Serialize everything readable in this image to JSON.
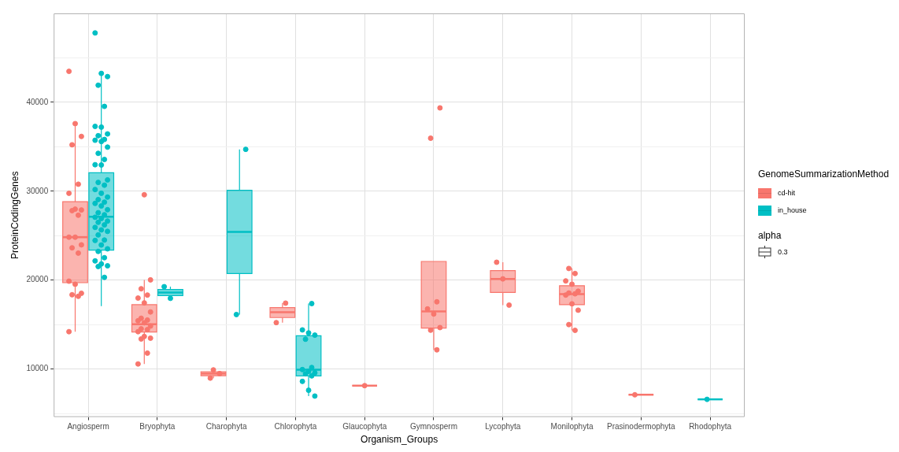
{
  "chart_data": {
    "type": "box",
    "xlabel": "Organism_Groups",
    "ylabel": "ProteinCodingGenes",
    "legend_title": "GenomeSummarizationMethod",
    "categories": [
      "Angiosperm",
      "Bryophyta",
      "Charophyta",
      "Chlorophyta",
      "Glaucophyta",
      "Gymnosperm",
      "Lycophyta",
      "Monilophyta",
      "Prasinodermophyta",
      "Rhodophyta"
    ],
    "ylim": [
      4600,
      50000
    ],
    "yticks": [
      {
        "value": 5000,
        "label": null
      },
      10000,
      {
        "value": 15000,
        "label": null
      },
      20000,
      {
        "value": 25000,
        "label": null
      },
      30000,
      {
        "value": 35000,
        "label": null
      },
      40000,
      {
        "value": 45000,
        "label": null
      }
    ],
    "grid": true,
    "legend": "right",
    "annotations": [
      "alpha",
      "0.3"
    ],
    "series": [
      {
        "name": "cd-hit",
        "color": "#f8766d",
        "boxes": [
          {
            "low": 14200,
            "q1": 19710,
            "median": 24830,
            "q3": 28830,
            "high": 37600
          },
          {
            "low": 10570,
            "q1": 14170,
            "median": 15030,
            "q3": 17240,
            "high": 20030
          },
          {
            "low": 8980,
            "q1": 9240,
            "median": 9490,
            "q3": 9700,
            "high": 9900
          },
          {
            "low": 15220,
            "q1": 15790,
            "median": 16390,
            "q3": 16900,
            "high": 17410
          },
          {
            "low": 8130,
            "q1": 8130,
            "median": 8130,
            "q3": 8130,
            "high": 8130
          },
          {
            "low": 12160,
            "q1": 14600,
            "median": 16480,
            "q3": 22100,
            "high": 22100
          },
          {
            "low": 17190,
            "q1": 18610,
            "median": 20140,
            "q3": 21080,
            "high": 22010
          },
          {
            "low": 14350,
            "q1": 17240,
            "median": 18430,
            "q3": 19370,
            "high": 21330
          },
          {
            "low": 7100,
            "q1": 7100,
            "median": 7100,
            "q3": 7100,
            "high": 7100
          },
          null
        ]
      },
      {
        "name": "in_house",
        "color": "#00bfc4",
        "boxes": [
          {
            "low": 17070,
            "q1": 23380,
            "median": 27130,
            "q3": 32070,
            "high": 43250
          },
          {
            "low": 17950,
            "q1": 18260,
            "median": 18600,
            "q3": 18950,
            "high": 19260
          },
          {
            "low": 16130,
            "q1": 20740,
            "median": 25420,
            "q3": 30110,
            "high": 34710
          },
          {
            "low": 6960,
            "q1": 9230,
            "median": 9920,
            "q3": 13750,
            "high": 17360
          },
          null,
          null,
          null,
          null,
          null,
          {
            "low": 6590,
            "q1": 6590,
            "median": 6590,
            "q3": 6590,
            "high": 6590
          }
        ]
      },
      {
        "type": "scatter",
        "color": "#f8766d",
        "x": [
          "Angiosperm",
          "Angiosperm",
          "Angiosperm",
          "Angiosperm",
          "Angiosperm",
          "Angiosperm",
          "Angiosperm",
          "Angiosperm",
          "Angiosperm",
          "Angiosperm",
          "Angiosperm",
          "Angiosperm",
          "Angiosperm",
          "Angiosperm",
          "Angiosperm",
          "Angiosperm",
          "Angiosperm",
          "Angiosperm",
          "Angiosperm",
          "Angiosperm",
          "Angiosperm",
          "Bryophyta",
          "Bryophyta",
          "Bryophyta",
          "Bryophyta",
          "Bryophyta",
          "Bryophyta",
          "Bryophyta",
          "Bryophyta",
          "Bryophyta",
          "Bryophyta",
          "Bryophyta",
          "Bryophyta",
          "Bryophyta",
          "Bryophyta",
          "Bryophyta",
          "Bryophyta",
          "Bryophyta",
          "Bryophyta",
          "Bryophyta",
          "Bryophyta",
          "Charophyta",
          "Charophyta",
          "Charophyta",
          "Chlorophyta",
          "Chlorophyta",
          "Glaucophyta",
          "Gymnosperm",
          "Gymnosperm",
          "Gymnosperm",
          "Gymnosperm",
          "Gymnosperm",
          "Gymnosperm",
          "Gymnosperm",
          "Gymnosperm",
          "Lycophyta",
          "Lycophyta",
          "Lycophyta",
          "Monilophyta",
          "Monilophyta",
          "Monilophyta",
          "Monilophyta",
          "Monilophyta",
          "Monilophyta",
          "Monilophyta",
          "Monilophyta",
          "Monilophyta",
          "Monilophyta",
          "Monilophyta",
          "Monilophyta",
          "Prasinodermophyta"
        ],
        "values": [
          43480,
          37600,
          36160,
          35220,
          30790,
          29770,
          27980,
          27890,
          27810,
          27300,
          24830,
          24830,
          23970,
          23630,
          23040,
          19880,
          19540,
          18520,
          18350,
          18180,
          14200,
          29600,
          20030,
          19030,
          18320,
          17980,
          17440,
          16420,
          15710,
          15510,
          15430,
          15200,
          14830,
          14520,
          14430,
          14200,
          13660,
          13470,
          13380,
          11790,
          10570,
          9900,
          9490,
          8980,
          17410,
          15220,
          8130,
          39370,
          35960,
          17560,
          16760,
          16190,
          14660,
          14370,
          12160,
          22010,
          20140,
          17190,
          21310,
          20740,
          19910,
          19540,
          18750,
          18550,
          18460,
          18320,
          17330,
          16620,
          15000,
          14350,
          7100
        ]
      },
      {
        "type": "scatter",
        "color": "#00bfc4",
        "x": [
          "Angiosperm",
          "Angiosperm",
          "Angiosperm",
          "Angiosperm",
          "Angiosperm",
          "Angiosperm",
          "Angiosperm",
          "Angiosperm",
          "Angiosperm",
          "Angiosperm",
          "Angiosperm",
          "Angiosperm",
          "Angiosperm",
          "Angiosperm",
          "Angiosperm",
          "Angiosperm",
          "Angiosperm",
          "Angiosperm",
          "Angiosperm",
          "Angiosperm",
          "Angiosperm",
          "Angiosperm",
          "Angiosperm",
          "Angiosperm",
          "Angiosperm",
          "Angiosperm",
          "Angiosperm",
          "Angiosperm",
          "Angiosperm",
          "Angiosperm",
          "Angiosperm",
          "Angiosperm",
          "Angiosperm",
          "Angiosperm",
          "Angiosperm",
          "Angiosperm",
          "Angiosperm",
          "Angiosperm",
          "Angiosperm",
          "Angiosperm",
          "Angiosperm",
          "Angiosperm",
          "Angiosperm",
          "Angiosperm",
          "Angiosperm",
          "Angiosperm",
          "Angiosperm",
          "Angiosperm",
          "Angiosperm",
          "Angiosperm",
          "Bryophyta",
          "Bryophyta",
          "Charophyta",
          "Charophyta",
          "Chlorophyta",
          "Chlorophyta",
          "Chlorophyta",
          "Chlorophyta",
          "Chlorophyta",
          "Chlorophyta",
          "Chlorophyta",
          "Chlorophyta",
          "Chlorophyta",
          "Chlorophyta",
          "Chlorophyta",
          "Chlorophyta",
          "Chlorophyta",
          "Chlorophyta",
          "Rhodophyta"
        ],
        "values": [
          47800,
          43250,
          42890,
          41920,
          39540,
          37290,
          37210,
          36440,
          36240,
          35820,
          35730,
          35590,
          34960,
          34260,
          33570,
          32980,
          32950,
          31270,
          30990,
          30680,
          30190,
          29770,
          29340,
          29060,
          28770,
          28630,
          28340,
          27920,
          27580,
          27350,
          27070,
          26930,
          26640,
          26500,
          26210,
          25930,
          25650,
          25480,
          25080,
          24510,
          24460,
          23950,
          23520,
          23230,
          22520,
          22160,
          21820,
          21610,
          21530,
          20310,
          19260,
          17950,
          34710,
          16130,
          17360,
          14400,
          14060,
          13810,
          13350,
          10170,
          9940,
          9740,
          9570,
          9460,
          9230,
          8610,
          7610,
          6960,
          6590
        ]
      }
    ]
  }
}
